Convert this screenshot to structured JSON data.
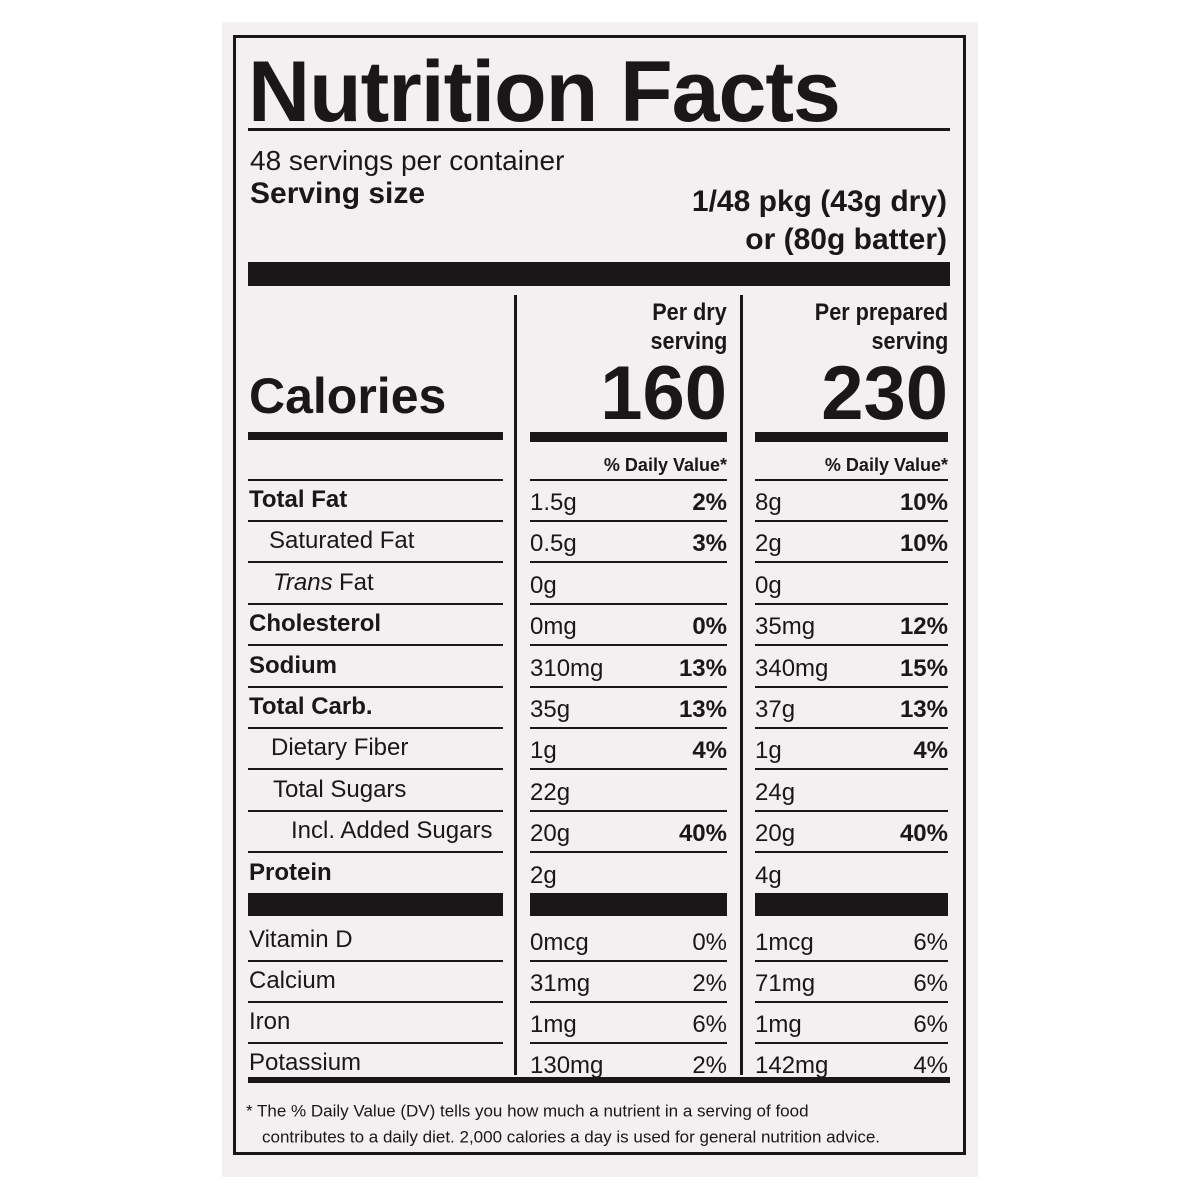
{
  "header": {
    "title": "Nutrition Facts",
    "servings": "48 servings per container",
    "serving_size_label": "Serving size",
    "serving_size_lines": [
      "1/48 pkg (43g dry)",
      "or (80g batter)"
    ]
  },
  "columns": [
    {
      "heading": [
        "Per dry",
        "serving"
      ],
      "calories": "160",
      "dv_heading": "% Daily Value*"
    },
    {
      "heading": [
        "Per prepared",
        "serving"
      ],
      "calories": "230",
      "dv_heading": "% Daily Value*"
    }
  ],
  "calories_label": "Calories",
  "nutrients": [
    {
      "name": "Total Fat",
      "dry": {
        "amount": "1.5g",
        "dv": "2%"
      },
      "prepared": {
        "amount": "8g",
        "dv": "10%"
      }
    },
    {
      "name": "Saturated Fat",
      "dry": {
        "amount": "0.5g",
        "dv": "3%"
      },
      "prepared": {
        "amount": "2g",
        "dv": "10%"
      }
    },
    {
      "name": [
        "Trans",
        "Fat"
      ],
      "dry": {
        "amount": "0g"
      },
      "prepared": {
        "amount": "0g"
      }
    },
    {
      "name": "Cholesterol",
      "dry": {
        "amount": "0mg",
        "dv": "0%"
      },
      "prepared": {
        "amount": "35mg",
        "dv": "12%"
      }
    },
    {
      "name": "Sodium",
      "dry": {
        "amount": "310mg",
        "dv": "13%"
      },
      "prepared": {
        "amount": "340mg",
        "dv": "15%"
      }
    },
    {
      "name": "Total Carb.",
      "dry": {
        "amount": "35g",
        "dv": "13%"
      },
      "prepared": {
        "amount": "37g",
        "dv": "13%"
      }
    },
    {
      "name": "Dietary Fiber",
      "dry": {
        "amount": "1g",
        "dv": "4%"
      },
      "prepared": {
        "amount": "1g",
        "dv": "4%"
      }
    },
    {
      "name": "Total Sugars",
      "dry": {
        "amount": "22g"
      },
      "prepared": {
        "amount": "24g"
      }
    },
    {
      "name": "Incl. Added Sugars",
      "dry": {
        "amount": "20g",
        "dv": "40%"
      },
      "prepared": {
        "amount": "20g",
        "dv": "40%"
      }
    },
    {
      "name": "Protein",
      "dry": {
        "amount": "2g"
      },
      "prepared": {
        "amount": "4g"
      }
    }
  ],
  "vitamins": [
    {
      "name": "Vitamin D",
      "dry": {
        "amount": "0mcg",
        "dv": "0%"
      },
      "prepared": {
        "amount": "1mcg",
        "dv": "6%"
      }
    },
    {
      "name": "Calcium",
      "dry": {
        "amount": "31mg",
        "dv": "2%"
      },
      "prepared": {
        "amount": "71mg",
        "dv": "6%"
      }
    },
    {
      "name": "Iron",
      "dry": {
        "amount": "1mg",
        "dv": "6%"
      },
      "prepared": {
        "amount": "1mg",
        "dv": "6%"
      }
    },
    {
      "name": "Potassium",
      "dry": {
        "amount": "130mg",
        "dv": "2%"
      },
      "prepared": {
        "amount": "142mg",
        "dv": "4%"
      }
    }
  ],
  "footnote": [
    "* The % Daily Value (DV) tells you how much a nutrient in a serving of food",
    "contributes to a daily diet. 2,000 calories a day is used for general nutrition advice."
  ]
}
